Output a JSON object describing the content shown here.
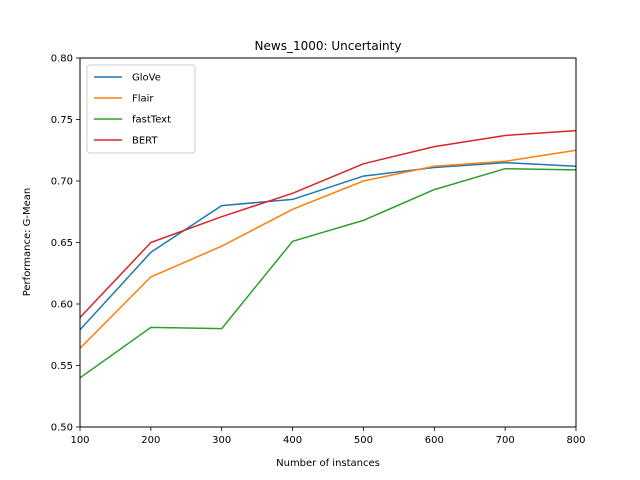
{
  "chart_data": {
    "type": "line",
    "title": "News_1000: Uncertainty",
    "xlabel": "Number of instances",
    "ylabel": "Performance: G-Mean",
    "x": [
      100,
      200,
      300,
      400,
      500,
      600,
      700,
      800
    ],
    "xlim": [
      100,
      800
    ],
    "ylim": [
      0.5,
      0.8
    ],
    "xticks": [
      "100",
      "200",
      "300",
      "400",
      "500",
      "600",
      "700",
      "800"
    ],
    "yticks": [
      "0.50",
      "0.55",
      "0.60",
      "0.65",
      "0.70",
      "0.75",
      "0.80"
    ],
    "grid": false,
    "legend_position": "upper-left",
    "series": [
      {
        "name": "GloVe",
        "color": "#1f77b4",
        "values": [
          0.579,
          0.642,
          0.68,
          0.685,
          0.704,
          0.711,
          0.715,
          0.712
        ]
      },
      {
        "name": "Flair",
        "color": "#ff7f0e",
        "values": [
          0.564,
          0.622,
          0.647,
          0.677,
          0.7,
          0.712,
          0.716,
          0.725
        ]
      },
      {
        "name": "fastText",
        "color": "#2ca02c",
        "values": [
          0.54,
          0.581,
          0.58,
          0.651,
          0.668,
          0.693,
          0.71,
          0.709
        ]
      },
      {
        "name": "BERT",
        "color": "#d62728",
        "values": [
          0.589,
          0.65,
          0.671,
          0.69,
          0.714,
          0.728,
          0.737,
          0.741
        ]
      }
    ]
  }
}
